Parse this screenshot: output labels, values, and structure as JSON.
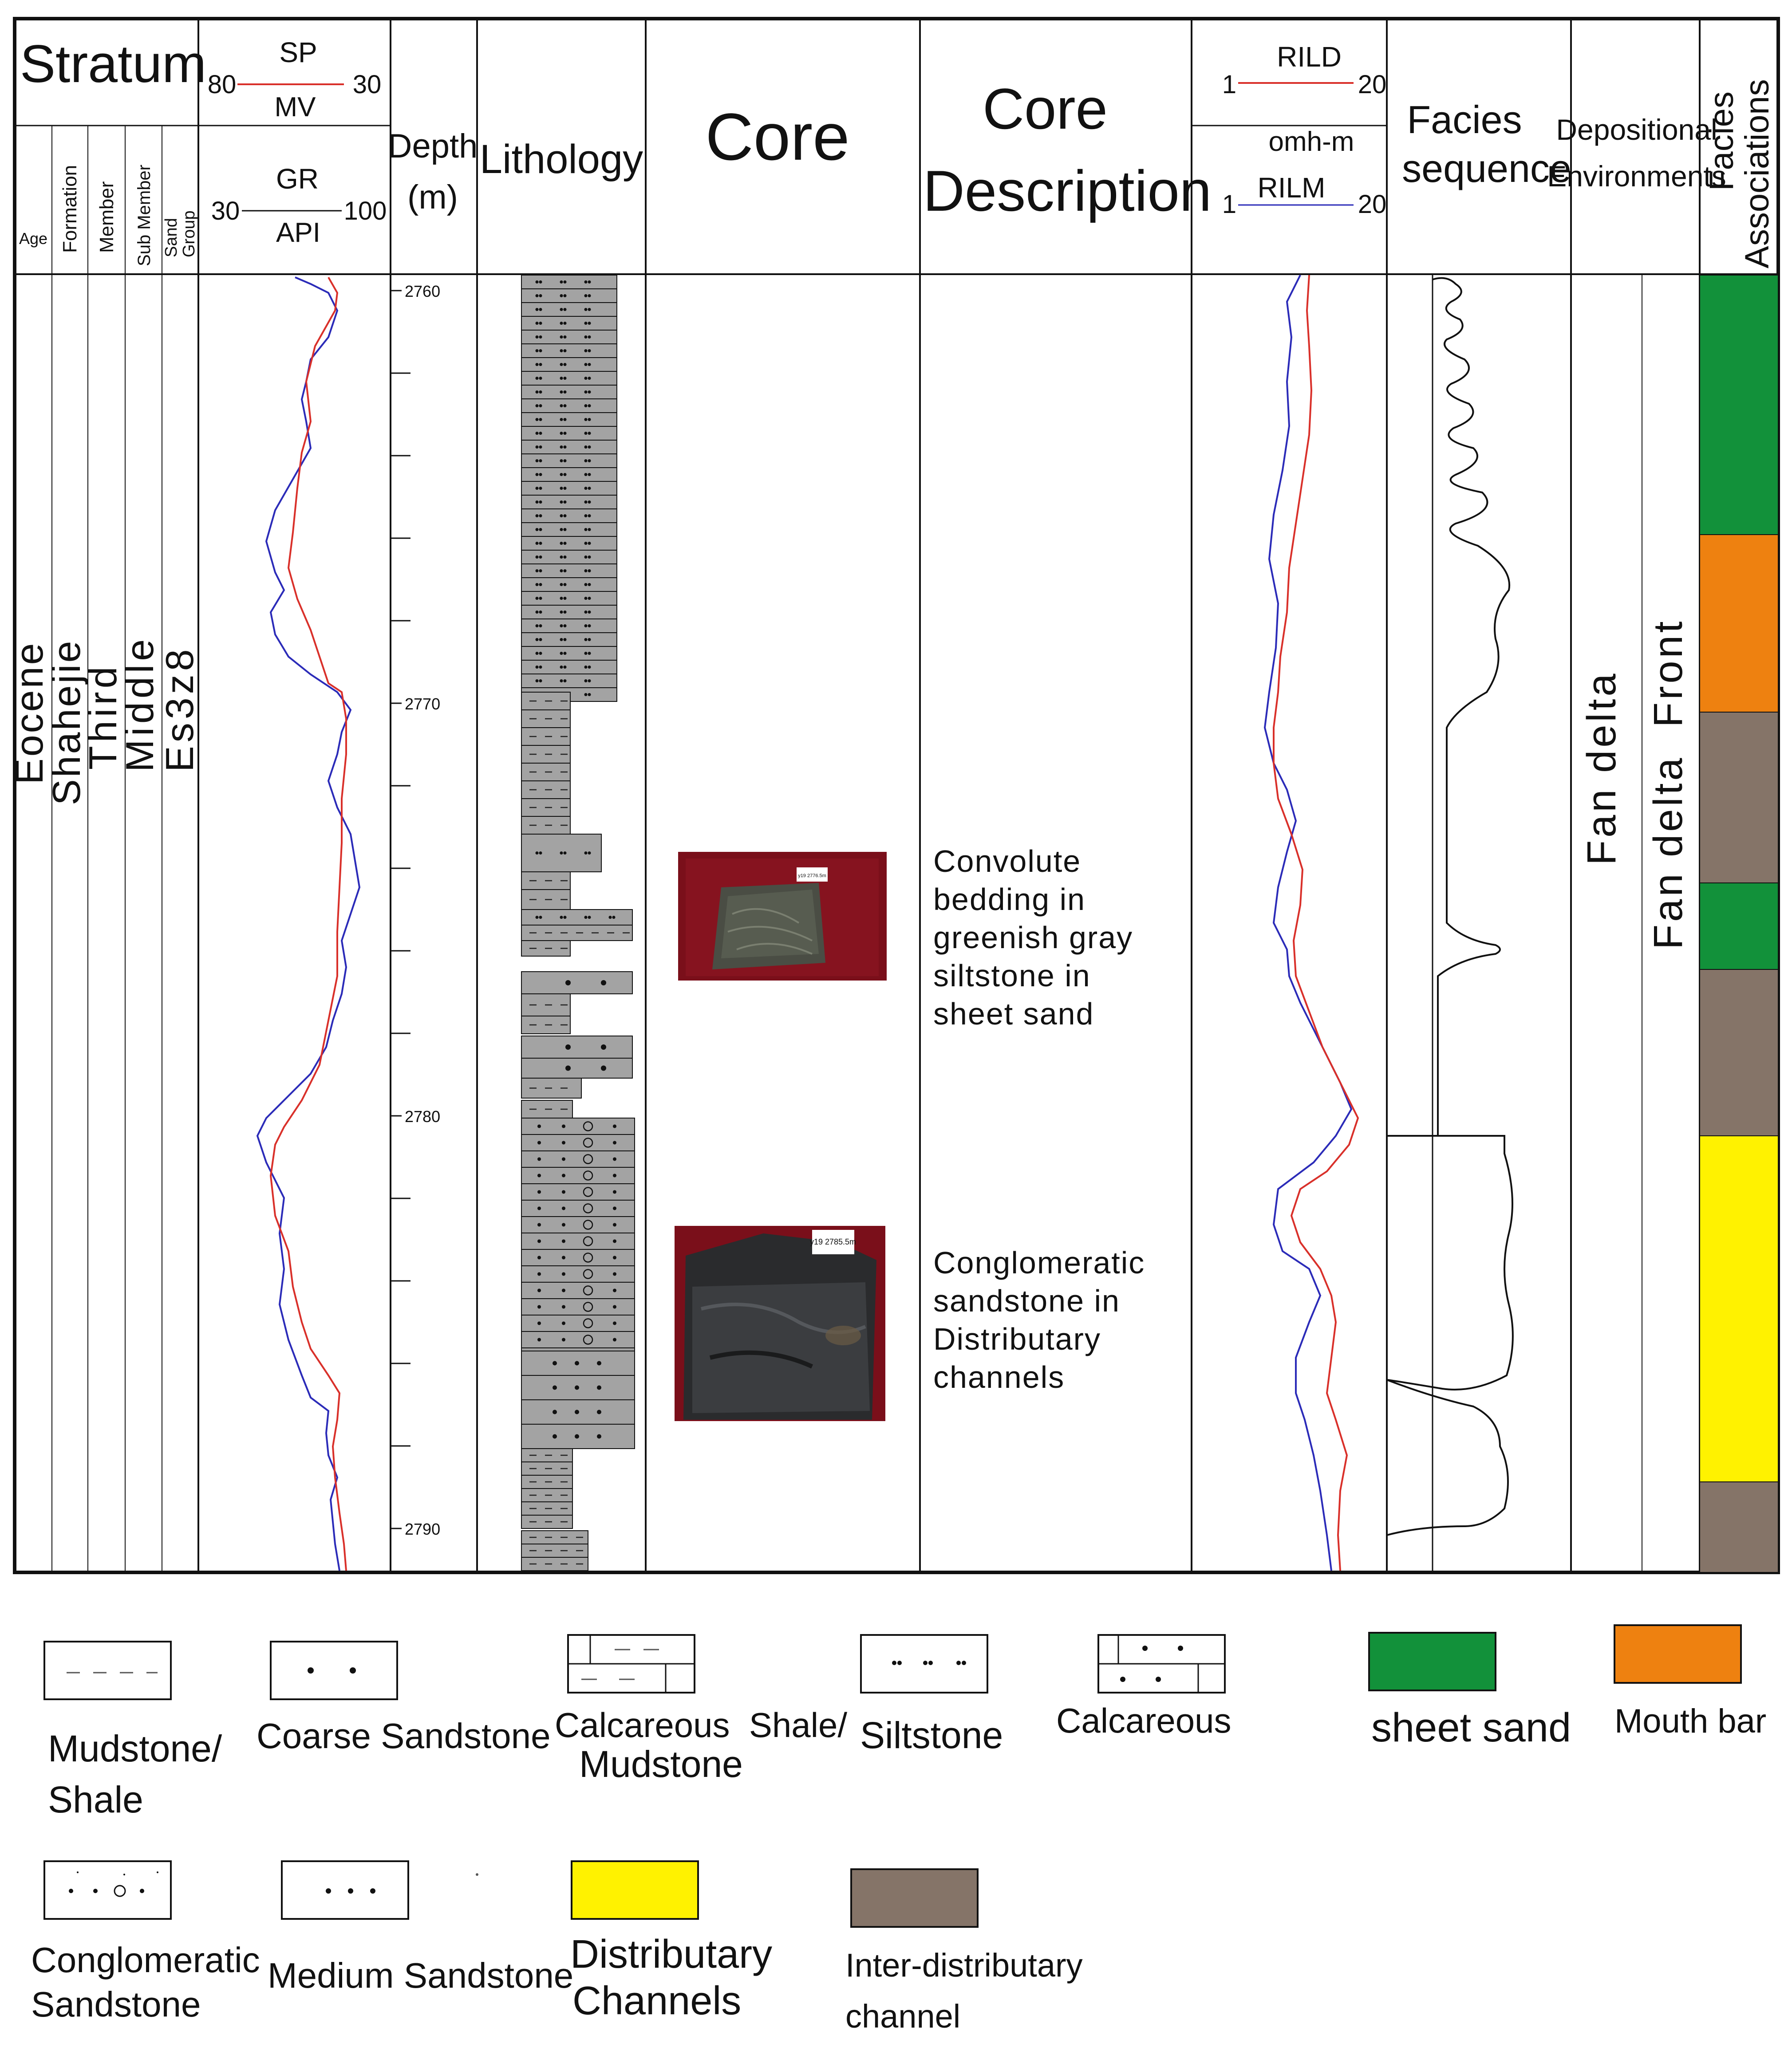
{
  "headers": {
    "stratum": "Stratum",
    "sp_label": "SP",
    "sp_left": "80",
    "sp_right": "30",
    "mv_label": "MV",
    "gr_label": "GR",
    "gr_left": "30",
    "gr_right": "100",
    "api_label": "API",
    "age": "Age",
    "formation": "Formation",
    "member": "Member",
    "sub_member": "Sub Member",
    "sand": "Sand",
    "group": "Group",
    "depth": "Depth",
    "depth_unit": "(m)",
    "lithology": "Lithology",
    "core": "Core",
    "core_desc_1": "Core",
    "core_desc_2": "Description",
    "rild": "RILD",
    "rild_left": "1",
    "rild_right": "20",
    "omhm": "omh-m",
    "rilm": "RILM",
    "rilm_left": "1",
    "rilm_right": "20",
    "facies_seq_1": "Facies",
    "facies_seq_2": "sequence",
    "dep_env_1": "Depositional",
    "dep_env_2": "Environments",
    "facies_assoc_1": "Facies",
    "facies_assoc_2": "Associations"
  },
  "stratum_values": {
    "age": "Eocene",
    "formation": "Shahejie",
    "member": "Third",
    "sub_member": "Middle",
    "sand_group": "Es3z8"
  },
  "depth_ticks": [
    "2760",
    "2770",
    "2780",
    "2790"
  ],
  "core_photos": [
    {
      "label": "y19 2776.5m"
    },
    {
      "label": "y19 2785.5m"
    }
  ],
  "core_descriptions": [
    {
      "lines": [
        "Convolute",
        "bedding in",
        "greenish gray",
        "siltstone in",
        "sheet sand"
      ]
    },
    {
      "lines": [
        "Conglomeratic",
        "sandstone in",
        "Distributary",
        "channels"
      ]
    }
  ],
  "environments": {
    "left": "Fan delta",
    "right": "Fan delta  Front"
  },
  "facies_associations": [
    {
      "type": "sheet sand",
      "color": "#12913a"
    },
    {
      "type": "Mouth bar",
      "color": "#ee8110"
    },
    {
      "type": "Inter-distributary channel",
      "color": "#857468"
    },
    {
      "type": "sheet sand",
      "color": "#12913a"
    },
    {
      "type": "Inter-distributary channel",
      "color": "#857468"
    },
    {
      "type": "Distributary Channels",
      "color": "#fff200"
    },
    {
      "type": "Inter-distributary channel",
      "color": "#857468"
    }
  ],
  "colors": {
    "gr_curve": "#2b2bb8",
    "sp_curve": "#d9302a",
    "lith_fill": "#a3a3a3",
    "sheet_sand": "#12913a",
    "mouth_bar": "#ee8110",
    "inter_channel": "#857468",
    "distributary": "#fff200"
  },
  "legend": {
    "mudstone": [
      "Mudstone/",
      "Shale"
    ],
    "coarse": "Coarse Sandstone",
    "calc_shale": [
      "Calcareous  Shale/",
      "Mudstone"
    ],
    "siltstone": "Siltstone",
    "calcareous": "Calcareous",
    "sheet_sand": "sheet sand",
    "mouth_bar": "Mouth bar",
    "conglomeratic": [
      "Conglomeratic",
      "Sandstone"
    ],
    "medium": "Medium Sandstone",
    "distributary": [
      "Distributary",
      "Channels"
    ],
    "inter": [
      "Inter-distributary",
      "channel"
    ]
  }
}
